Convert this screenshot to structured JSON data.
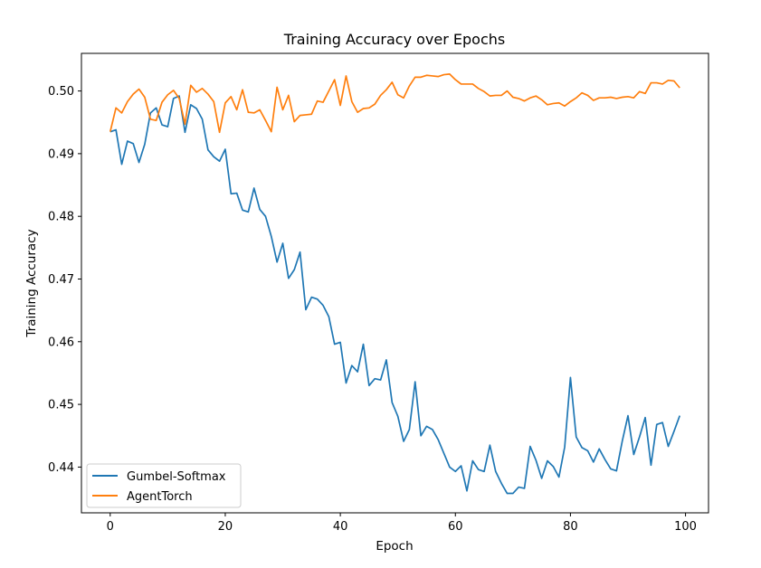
{
  "chart_data": {
    "type": "line",
    "title": "Training Accuracy over Epochs",
    "xlabel": "Epoch",
    "ylabel": "Training Accuracy",
    "xlim": [
      -5,
      104
    ],
    "ylim": [
      0.4327,
      0.506
    ],
    "xticks": [
      0,
      20,
      40,
      60,
      80,
      100
    ],
    "xtick_labels": [
      "0",
      "20",
      "40",
      "60",
      "80",
      "100"
    ],
    "yticks": [
      0.44,
      0.45,
      0.46,
      0.47,
      0.48,
      0.49,
      0.5
    ],
    "ytick_labels": [
      "0.44",
      "0.45",
      "0.46",
      "0.47",
      "0.48",
      "0.49",
      "0.50"
    ],
    "grid": false,
    "legend_position": "lower-left",
    "x": [
      0,
      1,
      2,
      3,
      4,
      5,
      6,
      7,
      8,
      9,
      10,
      11,
      12,
      13,
      14,
      15,
      16,
      17,
      18,
      19,
      20,
      21,
      22,
      23,
      24,
      25,
      26,
      27,
      28,
      29,
      30,
      31,
      32,
      33,
      34,
      35,
      36,
      37,
      38,
      39,
      40,
      41,
      42,
      43,
      44,
      45,
      46,
      47,
      48,
      49,
      50,
      51,
      52,
      53,
      54,
      55,
      56,
      57,
      58,
      59,
      60,
      61,
      62,
      63,
      64,
      65,
      66,
      67,
      68,
      69,
      70,
      71,
      72,
      73,
      74,
      75,
      76,
      77,
      78,
      79,
      80,
      81,
      82,
      83,
      84,
      85,
      86,
      87,
      88,
      89,
      90,
      91,
      92,
      93,
      94,
      95,
      96,
      97,
      98,
      99
    ],
    "series": [
      {
        "name": "Gumbel-Softmax",
        "color": "#1f77b4",
        "values": [
          0.4935,
          0.4938,
          0.4883,
          0.492,
          0.4916,
          0.4886,
          0.4915,
          0.4965,
          0.4973,
          0.4946,
          0.4943,
          0.4988,
          0.4992,
          0.4934,
          0.4978,
          0.4972,
          0.4955,
          0.4906,
          0.4895,
          0.4888,
          0.4907,
          0.4836,
          0.4837,
          0.481,
          0.4807,
          0.4845,
          0.4811,
          0.48,
          0.4768,
          0.4727,
          0.4757,
          0.4701,
          0.4715,
          0.4743,
          0.4651,
          0.4671,
          0.4668,
          0.4658,
          0.464,
          0.4596,
          0.4599,
          0.4534,
          0.4562,
          0.4552,
          0.4596,
          0.453,
          0.4541,
          0.4539,
          0.4571,
          0.4503,
          0.4481,
          0.4441,
          0.446,
          0.4536,
          0.445,
          0.4465,
          0.446,
          0.4444,
          0.4422,
          0.44,
          0.4393,
          0.4402,
          0.4362,
          0.441,
          0.4396,
          0.4393,
          0.4435,
          0.4393,
          0.4374,
          0.4358,
          0.4358,
          0.4368,
          0.4366,
          0.4433,
          0.4411,
          0.4382,
          0.441,
          0.4401,
          0.4384,
          0.4432,
          0.4543,
          0.4448,
          0.4431,
          0.4426,
          0.4408,
          0.4429,
          0.4412,
          0.4397,
          0.4394,
          0.4441,
          0.4482,
          0.442,
          0.4448,
          0.4479,
          0.4403,
          0.4468,
          0.4471,
          0.4433,
          0.4457,
          0.4482
        ]
      },
      {
        "name": "AgentTorch",
        "color": "#ff7f0e",
        "values": [
          0.4935,
          0.4973,
          0.4965,
          0.4983,
          0.4995,
          0.5003,
          0.499,
          0.4955,
          0.4953,
          0.4982,
          0.4994,
          0.5001,
          0.4988,
          0.4947,
          0.5009,
          0.4998,
          0.5004,
          0.4995,
          0.4983,
          0.4934,
          0.4981,
          0.4991,
          0.497,
          0.5002,
          0.4966,
          0.4965,
          0.497,
          0.4953,
          0.4935,
          0.5006,
          0.497,
          0.4993,
          0.4951,
          0.4961,
          0.4962,
          0.4963,
          0.4984,
          0.4982,
          0.5,
          0.5018,
          0.4977,
          0.5024,
          0.4983,
          0.4966,
          0.4972,
          0.4973,
          0.4979,
          0.4993,
          0.5002,
          0.5014,
          0.4994,
          0.4989,
          0.5008,
          0.5022,
          0.5022,
          0.5025,
          0.5024,
          0.5023,
          0.5026,
          0.5027,
          0.5018,
          0.5011,
          0.5011,
          0.5011,
          0.5004,
          0.4999,
          0.4992,
          0.4993,
          0.4993,
          0.5,
          0.499,
          0.4988,
          0.4984,
          0.4989,
          0.4992,
          0.4986,
          0.4978,
          0.498,
          0.4981,
          0.4976,
          0.4983,
          0.4989,
          0.4997,
          0.4993,
          0.4985,
          0.4989,
          0.4989,
          0.499,
          0.4988,
          0.499,
          0.4991,
          0.4989,
          0.4999,
          0.4996,
          0.5013,
          0.5013,
          0.5011,
          0.5017,
          0.5016,
          0.5005
        ]
      }
    ]
  }
}
